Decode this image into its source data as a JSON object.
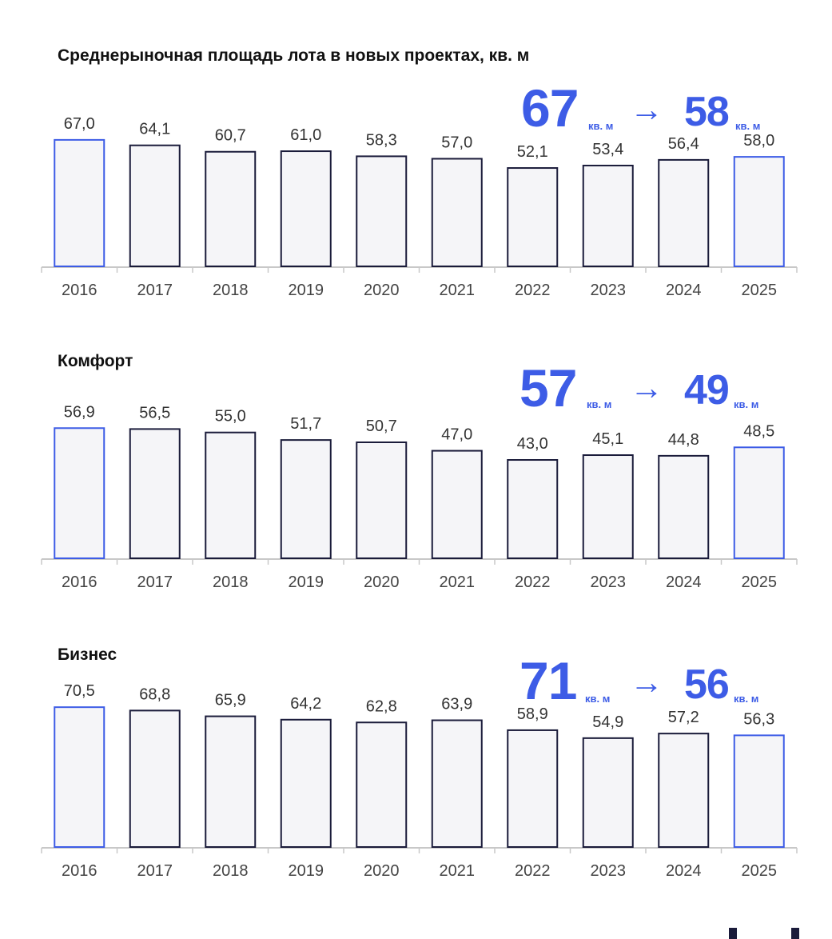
{
  "chart_data": [
    {
      "type": "bar",
      "title": "Среднерыночная площадь лота в новых проектах, кв. м",
      "categories": [
        "2016",
        "2017",
        "2018",
        "2019",
        "2020",
        "2021",
        "2022",
        "2023",
        "2024",
        "2025"
      ],
      "values": [
        67.0,
        64.1,
        60.7,
        61.0,
        58.3,
        57.0,
        52.1,
        53.4,
        56.4,
        58.0
      ],
      "labels": [
        "67,0",
        "64,1",
        "60,7",
        "61,0",
        "58,3",
        "57,0",
        "52,1",
        "53,4",
        "56,4",
        "58,0"
      ],
      "highlight": [
        "2016",
        "2025"
      ],
      "kpi": {
        "from": "67",
        "to": "58",
        "unit": "кв. м"
      }
    },
    {
      "type": "bar",
      "title": "Комфорт",
      "categories": [
        "2016",
        "2017",
        "2018",
        "2019",
        "2020",
        "2021",
        "2022",
        "2023",
        "2024",
        "2025"
      ],
      "values": [
        56.9,
        56.5,
        55.0,
        51.7,
        50.7,
        47.0,
        43.0,
        45.1,
        44.8,
        48.5
      ],
      "labels": [
        "56,9",
        "56,5",
        "55,0",
        "51,7",
        "50,7",
        "47,0",
        "43,0",
        "45,1",
        "44,8",
        "48,5"
      ],
      "highlight": [
        "2016",
        "2025"
      ],
      "kpi": {
        "from": "57",
        "to": "49",
        "unit": "кв. м"
      }
    },
    {
      "type": "bar",
      "title": "Бизнес",
      "categories": [
        "2016",
        "2017",
        "2018",
        "2019",
        "2020",
        "2021",
        "2022",
        "2023",
        "2024",
        "2025"
      ],
      "values": [
        70.5,
        68.8,
        65.9,
        64.2,
        62.8,
        63.9,
        58.9,
        54.9,
        57.2,
        56.3
      ],
      "labels": [
        "70,5",
        "68,8",
        "65,9",
        "64,2",
        "62,8",
        "63,9",
        "58,9",
        "54,9",
        "57,2",
        "56,3"
      ],
      "highlight": [
        "2016",
        "2025"
      ],
      "kpi": {
        "from": "71",
        "to": "56",
        "unit": "кв. м"
      }
    }
  ],
  "kpi_arrow": "→",
  "colors": {
    "accent": "#3d5ce6",
    "bar_stroke": "#1a1b3a",
    "bar_fill": "#f5f5f8",
    "axis": "#c8c8c8",
    "text": "#333333"
  }
}
